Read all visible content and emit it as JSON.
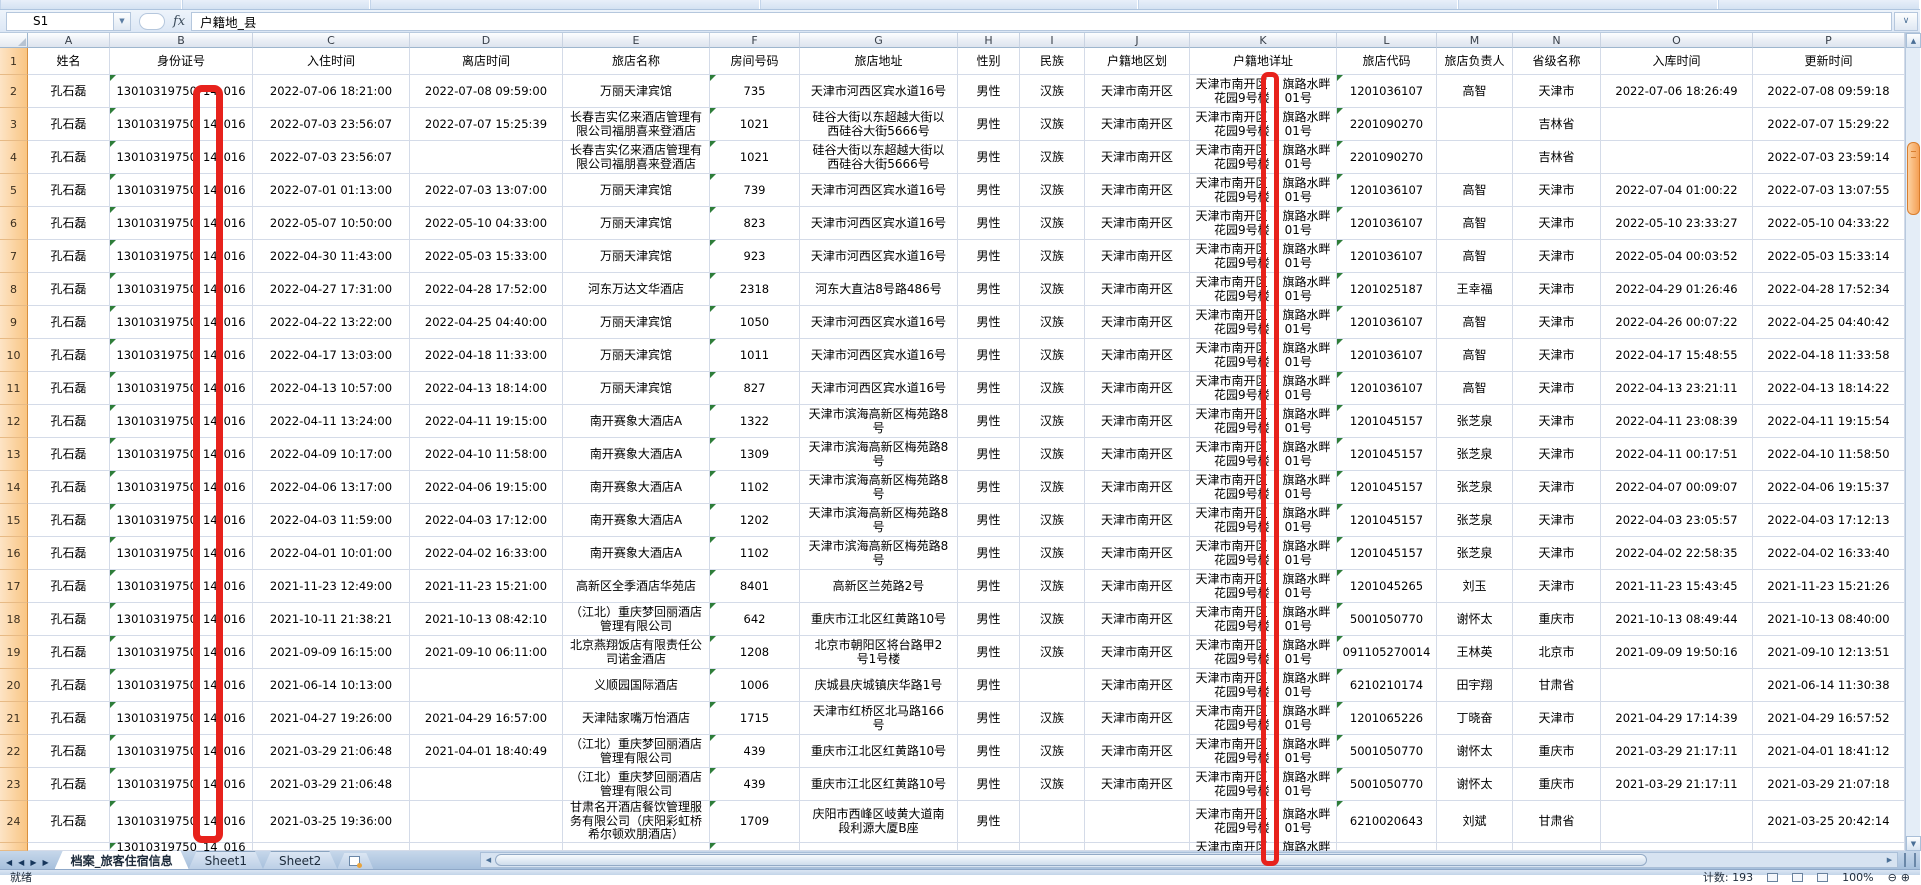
{
  "formula_bar": {
    "name_box": "S1",
    "dropdown_icon": "▼",
    "fx_label": "fx",
    "formula": "户籍地_县",
    "expand_icon": "∨"
  },
  "sheet": {
    "columns": [
      {
        "letter": "A",
        "header": "姓名"
      },
      {
        "letter": "B",
        "header": "身份证号"
      },
      {
        "letter": "C",
        "header": "入住时间"
      },
      {
        "letter": "D",
        "header": "离店时间"
      },
      {
        "letter": "E",
        "header": "旅店名称"
      },
      {
        "letter": "F",
        "header": "房间号码"
      },
      {
        "letter": "G",
        "header": "旅店地址"
      },
      {
        "letter": "H",
        "header": "性别"
      },
      {
        "letter": "I",
        "header": "民族"
      },
      {
        "letter": "J",
        "header": "户籍地区划"
      },
      {
        "letter": "K",
        "header": "户籍地详址"
      },
      {
        "letter": "L",
        "header": "旅店代码"
      },
      {
        "letter": "M",
        "header": "旅店负责人"
      },
      {
        "letter": "N",
        "header": "省级名称"
      },
      {
        "letter": "O",
        "header": "入库时间"
      },
      {
        "letter": "P",
        "header": "更新时间"
      }
    ],
    "constants": {
      "guest_name": "孔石磊",
      "id_parts": [
        "13010319750",
        "14",
        "016"
      ],
      "gender": "男性",
      "k_line1": [
        "天津市南开区",
        "旗路水畔"
      ],
      "k_line2": [
        "花园9号楼",
        "01号"
      ]
    },
    "rows": [
      {
        "no": "2",
        "C": "2022-07-06 18:21:00",
        "D": "2022-07-08 09:59:00",
        "E": "万丽天津宾馆",
        "F": "735",
        "G": "天津市河西区宾水道16号",
        "I": "汉族",
        "J": "天津市南开区",
        "L": "1201036107",
        "M": "高智",
        "N": "天津市",
        "O": "2022-07-06 18:26:49",
        "P": "2022-07-08 09:59:18"
      },
      {
        "no": "3",
        "C": "2022-07-03 23:56:07",
        "D": "2022-07-07 15:25:39",
        "E": "长春吉实亿来酒店管理有\n限公司福朋喜来登酒店",
        "F": "1021",
        "G": "硅谷大街以东超越大街以\n西硅谷大街5666号",
        "I": "汉族",
        "J": "天津市南开区",
        "L": "2201090270",
        "M": "",
        "N": "吉林省",
        "O": "",
        "P": "2022-07-07 15:29:22"
      },
      {
        "no": "4",
        "C": "2022-07-03 23:56:07",
        "D": "",
        "E": "长春吉实亿来酒店管理有\n限公司福朋喜来登酒店",
        "F": "1021",
        "G": "硅谷大街以东超越大街以\n西硅谷大街5666号",
        "I": "汉族",
        "J": "天津市南开区",
        "L": "2201090270",
        "M": "",
        "N": "吉林省",
        "O": "",
        "P": "2022-07-03 23:59:14"
      },
      {
        "no": "5",
        "C": "2022-07-01 01:13:00",
        "D": "2022-07-03 13:07:00",
        "E": "万丽天津宾馆",
        "F": "739",
        "G": "天津市河西区宾水道16号",
        "I": "汉族",
        "J": "天津市南开区",
        "L": "1201036107",
        "M": "高智",
        "N": "天津市",
        "O": "2022-07-04 01:00:22",
        "P": "2022-07-03 13:07:55"
      },
      {
        "no": "6",
        "C": "2022-05-07 10:50:00",
        "D": "2022-05-10 04:33:00",
        "E": "万丽天津宾馆",
        "F": "823",
        "G": "天津市河西区宾水道16号",
        "I": "汉族",
        "J": "天津市南开区",
        "L": "1201036107",
        "M": "高智",
        "N": "天津市",
        "O": "2022-05-10 23:33:27",
        "P": "2022-05-10 04:33:22"
      },
      {
        "no": "7",
        "C": "2022-04-30 11:43:00",
        "D": "2022-05-03 15:33:00",
        "E": "万丽天津宾馆",
        "F": "923",
        "G": "天津市河西区宾水道16号",
        "I": "汉族",
        "J": "天津市南开区",
        "L": "1201036107",
        "M": "高智",
        "N": "天津市",
        "O": "2022-05-04 00:03:52",
        "P": "2022-05-03 15:33:14"
      },
      {
        "no": "8",
        "C": "2022-04-27 17:31:00",
        "D": "2022-04-28 17:52:00",
        "E": "河东万达文华酒店",
        "F": "2318",
        "G": "河东大直沽8号路486号",
        "I": "汉族",
        "J": "天津市南开区",
        "L": "1201025187",
        "M": "王幸福",
        "N": "天津市",
        "O": "2022-04-29 01:26:46",
        "P": "2022-04-28 17:52:34"
      },
      {
        "no": "9",
        "C": "2022-04-22 13:22:00",
        "D": "2022-04-25 04:40:00",
        "E": "万丽天津宾馆",
        "F": "1050",
        "G": "天津市河西区宾水道16号",
        "I": "汉族",
        "J": "天津市南开区",
        "L": "1201036107",
        "M": "高智",
        "N": "天津市",
        "O": "2022-04-26 00:07:22",
        "P": "2022-04-25 04:40:42"
      },
      {
        "no": "10",
        "C": "2022-04-17 13:03:00",
        "D": "2022-04-18 11:33:00",
        "E": "万丽天津宾馆",
        "F": "1011",
        "G": "天津市河西区宾水道16号",
        "I": "汉族",
        "J": "天津市南开区",
        "L": "1201036107",
        "M": "高智",
        "N": "天津市",
        "O": "2022-04-17 15:48:55",
        "P": "2022-04-18 11:33:58"
      },
      {
        "no": "11",
        "C": "2022-04-13 10:57:00",
        "D": "2022-04-13 18:14:00",
        "E": "万丽天津宾馆",
        "F": "827",
        "G": "天津市河西区宾水道16号",
        "I": "汉族",
        "J": "天津市南开区",
        "L": "1201036107",
        "M": "高智",
        "N": "天津市",
        "O": "2022-04-13 23:21:11",
        "P": "2022-04-13 18:14:22"
      },
      {
        "no": "12",
        "C": "2022-04-11 13:24:00",
        "D": "2022-04-11 19:15:00",
        "E": "南开赛象大酒店A",
        "F": "1322",
        "G": "天津市滨海高新区梅苑路8\n号",
        "I": "汉族",
        "J": "天津市南开区",
        "L": "1201045157",
        "M": "张芝泉",
        "N": "天津市",
        "O": "2022-04-11 23:08:39",
        "P": "2022-04-11 19:15:54"
      },
      {
        "no": "13",
        "C": "2022-04-09 10:17:00",
        "D": "2022-04-10 11:58:00",
        "E": "南开赛象大酒店A",
        "F": "1309",
        "G": "天津市滨海高新区梅苑路8\n号",
        "I": "汉族",
        "J": "天津市南开区",
        "L": "1201045157",
        "M": "张芝泉",
        "N": "天津市",
        "O": "2022-04-11 00:17:51",
        "P": "2022-04-10 11:58:50"
      },
      {
        "no": "14",
        "C": "2022-04-06 13:17:00",
        "D": "2022-04-06 19:15:00",
        "E": "南开赛象大酒店A",
        "F": "1102",
        "G": "天津市滨海高新区梅苑路8\n号",
        "I": "汉族",
        "J": "天津市南开区",
        "L": "1201045157",
        "M": "张芝泉",
        "N": "天津市",
        "O": "2022-04-07 00:09:07",
        "P": "2022-04-06 19:15:37"
      },
      {
        "no": "15",
        "C": "2022-04-03 11:59:00",
        "D": "2022-04-03 17:12:00",
        "E": "南开赛象大酒店A",
        "F": "1202",
        "G": "天津市滨海高新区梅苑路8\n号",
        "I": "汉族",
        "J": "天津市南开区",
        "L": "1201045157",
        "M": "张芝泉",
        "N": "天津市",
        "O": "2022-04-03 23:05:57",
        "P": "2022-04-03 17:12:13"
      },
      {
        "no": "16",
        "C": "2022-04-01 10:01:00",
        "D": "2022-04-02 16:33:00",
        "E": "南开赛象大酒店A",
        "F": "1102",
        "G": "天津市滨海高新区梅苑路8\n号",
        "I": "汉族",
        "J": "天津市南开区",
        "L": "1201045157",
        "M": "张芝泉",
        "N": "天津市",
        "O": "2022-04-02 22:58:35",
        "P": "2022-04-02 16:33:40"
      },
      {
        "no": "17",
        "C": "2021-11-23 12:49:00",
        "D": "2021-11-23 15:21:00",
        "E": "高新区全季酒店华苑店",
        "F": "8401",
        "G": "高新区兰苑路2号",
        "I": "汉族",
        "J": "天津市南开区",
        "L": "1201045265",
        "M": "刘玉",
        "N": "天津市",
        "O": "2021-11-23 15:43:45",
        "P": "2021-11-23 15:21:26"
      },
      {
        "no": "18",
        "C": "2021-10-11 21:38:21",
        "D": "2021-10-13 08:42:10",
        "E": "（江北）重庆梦回丽酒店\n管理有限公司",
        "F": "642",
        "G": "重庆市江北区红黄路10号",
        "I": "汉族",
        "J": "天津市南开区",
        "L": "5001050770",
        "M": "谢怀太",
        "N": "重庆市",
        "O": "2021-10-13 08:49:44",
        "P": "2021-10-13 08:40:00"
      },
      {
        "no": "19",
        "C": "2021-09-09 16:15:00",
        "D": "2021-09-10 06:11:00",
        "E": "北京燕翔饭店有限责任公\n司诺金酒店",
        "F": "1208",
        "G": "北京市朝阳区将台路甲2\n号1号楼",
        "I": "汉族",
        "J": "天津市南开区",
        "L": "091105270014",
        "M": "王林英",
        "N": "北京市",
        "O": "2021-09-09 19:50:16",
        "P": "2021-09-10 12:13:51"
      },
      {
        "no": "20",
        "C": "2021-06-14 10:13:00",
        "D": "",
        "E": "义顺园国际酒店",
        "F": "1006",
        "G": "庆城县庆城镇庆华路1号",
        "I": "",
        "J": "天津市南开区",
        "L": "6210210174",
        "M": "田宇翔",
        "N": "甘肃省",
        "O": "",
        "P": "2021-06-14 11:30:38"
      },
      {
        "no": "21",
        "C": "2021-04-27 19:26:00",
        "D": "2021-04-29 16:57:00",
        "E": "天津陆家嘴万怡酒店",
        "F": "1715",
        "G": "天津市红桥区北马路166\n号",
        "I": "汉族",
        "J": "天津市南开区",
        "L": "1201065226",
        "M": "丁晓奋",
        "N": "天津市",
        "O": "2021-04-29 17:14:39",
        "P": "2021-04-29 16:57:52"
      },
      {
        "no": "22",
        "C": "2021-03-29 21:06:48",
        "D": "2021-04-01 18:40:49",
        "E": "（江北）重庆梦回丽酒店\n管理有限公司",
        "F": "439",
        "G": "重庆市江北区红黄路10号",
        "I": "汉族",
        "J": "天津市南开区",
        "L": "5001050770",
        "M": "谢怀太",
        "N": "重庆市",
        "O": "2021-03-29 21:17:11",
        "P": "2021-04-01 18:41:12"
      },
      {
        "no": "23",
        "C": "2021-03-29 21:06:48",
        "D": "",
        "E": "（江北）重庆梦回丽酒店\n管理有限公司",
        "F": "439",
        "G": "重庆市江北区红黄路10号",
        "I": "汉族",
        "J": "天津市南开区",
        "L": "5001050770",
        "M": "谢怀太",
        "N": "重庆市",
        "O": "2021-03-29 21:17:11",
        "P": "2021-03-29 21:07:18"
      },
      {
        "no": "24",
        "tall": true,
        "C": "2021-03-25 19:36:00",
        "D": "",
        "E": "甘肃名开酒店餐饮管理服\n务有限公司（庆阳彩虹桥\n希尔顿欢朋酒店）",
        "F": "1709",
        "G": "庆阳市西峰区岐黄大道南\n段利源大厦B座",
        "I": "",
        "J": "",
        "L": "6210020643",
        "M": "刘斌",
        "N": "甘肃省",
        "O": "",
        "P": "2021-03-25 20:42:14"
      },
      {
        "no": "25",
        "partial": true,
        "C": "",
        "D": "",
        "E": "",
        "F": "",
        "G": "",
        "I": "",
        "J": "",
        "L": "",
        "M": "",
        "N": "",
        "O": "",
        "P": ""
      }
    ]
  },
  "annotations": {
    "highlight_color": "#e7221c",
    "boxes": [
      "id-number-digits-column-slice",
      "household-address-column-slice"
    ]
  },
  "tabs": {
    "nav_icons": [
      "◀",
      "◀",
      "▶",
      "▶"
    ],
    "active": "档案_旅客住宿信息",
    "others": [
      "Sheet1",
      "Sheet2"
    ]
  },
  "scrollbars": {
    "up_icon": "▲",
    "down_icon": "▼",
    "left_icon": "◀",
    "right_icon": "▶"
  },
  "status_bar": {
    "ready": "就绪",
    "count": "计数: 193",
    "zoom_level": "100%",
    "zoom_minus": "⊖",
    "zoom_plus": "⊕"
  }
}
